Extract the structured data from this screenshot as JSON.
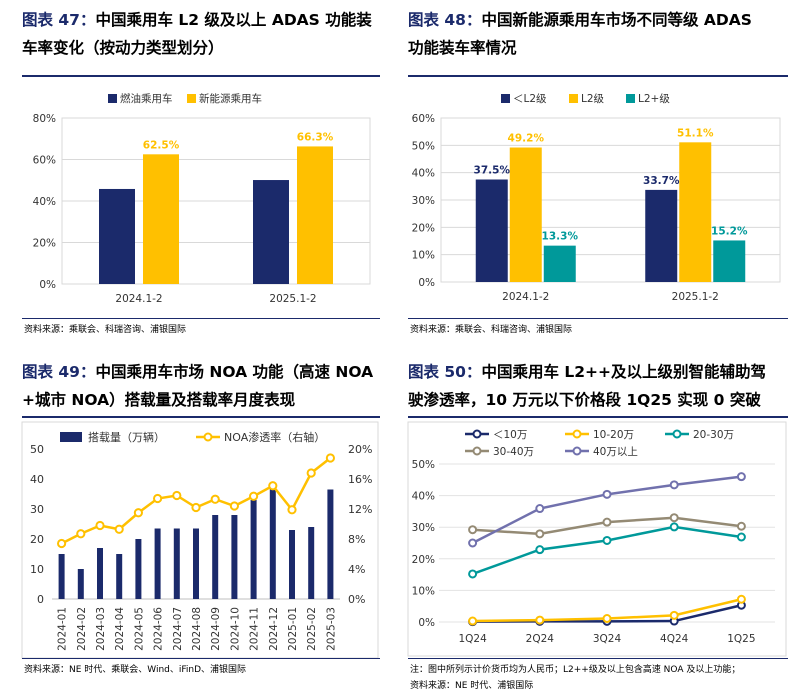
{
  "panels": [
    {
      "title_label": "图表 47：",
      "title_line1": "中国乘用车 L2 级及以上 ADAS 功能装",
      "title_line2": "车率变化（按动力类型划分）",
      "source": "资料来源：乘联会、科瑞咨询、浦银国际"
    },
    {
      "title_label": "图表 48：",
      "title_line1": "中国新能源乘用车市场不同等级 ADAS",
      "title_line2": "功能装车率情况",
      "source": "资料来源：乘联会、科瑞咨询、浦银国际"
    },
    {
      "title_label": "图表 49：",
      "title_line1": "中国乘用车市场 NOA 功能（高速 NOA",
      "title_line2": "+城市 NOA）搭载量及搭载率月度表现",
      "source": "资料来源：NE 时代、乘联会、Wind、iFinD、浦银国际"
    },
    {
      "title_label": "图表 50：",
      "title_line1": "中国乘用车 L2++及以上级别智能辅助驾",
      "title_line2": "驶渗透率，10 万元以下价格段 1Q25 实现 0 突破",
      "note": "注：图中所列示计价货币均为人民币；L2++级及以上包含高速 NOA 及以上功能；",
      "source": "资料来源：NE 时代、浦银国际"
    }
  ],
  "colors": {
    "navy": "#1b2a6b",
    "gold": "#ffc000",
    "teal": "#00999a",
    "gray": "#948a74",
    "purple": "#7171ad"
  },
  "chart_data": [
    {
      "type": "bar",
      "categories": [
        "2024.1-2",
        "2025.1-2"
      ],
      "series": [
        {
          "name": "燃油乘用车",
          "values": [
            45.8,
            50.1
          ],
          "labels": [
            "",
            ""
          ],
          "color": "#1b2a6b"
        },
        {
          "name": "新能源乘用车",
          "values": [
            62.5,
            66.3
          ],
          "labels": [
            "62.5%",
            "66.3%"
          ],
          "color": "#ffc000"
        }
      ],
      "ylim": [
        0,
        80
      ],
      "yticks": [
        "0%",
        "20%",
        "40%",
        "60%",
        "80%"
      ]
    },
    {
      "type": "bar",
      "categories": [
        "2024.1-2",
        "2025.1-2"
      ],
      "series": [
        {
          "name": "＜L2级",
          "values": [
            37.5,
            33.7
          ],
          "labels": [
            "37.5%",
            "33.7%"
          ],
          "color": "#1b2a6b"
        },
        {
          "name": "L2级",
          "values": [
            49.2,
            51.1
          ],
          "labels": [
            "49.2%",
            "51.1%"
          ],
          "color": "#ffc000"
        },
        {
          "name": "L2+级",
          "values": [
            13.3,
            15.2
          ],
          "labels": [
            "13.3%",
            "15.2%"
          ],
          "color": "#00999a"
        }
      ],
      "ylim": [
        0,
        60
      ],
      "yticks": [
        "0%",
        "10%",
        "20%",
        "30%",
        "40%",
        "50%",
        "60%"
      ]
    },
    {
      "type": "bar",
      "categories": [
        "2024-01",
        "2024-02",
        "2024-03",
        "2024-04",
        "2024-05",
        "2024-06",
        "2024-07",
        "2024-08",
        "2024-09",
        "2024-10",
        "2024-11",
        "2024-12",
        "2025-01",
        "2025-02",
        "2025-03"
      ],
      "series": [
        {
          "name": "搭载量（万辆）",
          "type": "bar",
          "axis": "left",
          "values": [
            15,
            10,
            17,
            15,
            20,
            23.5,
            23.5,
            23.5,
            28,
            28,
            33,
            38.5,
            23,
            24,
            36.5
          ],
          "color": "#1b2a6b"
        },
        {
          "name": "NOA渗透率（右轴）",
          "type": "line",
          "axis": "right",
          "values": [
            7.4,
            8.7,
            9.8,
            9.3,
            11.5,
            13.4,
            13.8,
            12.2,
            13.3,
            12.4,
            13.7,
            15.1,
            11.9,
            16.8,
            18.8
          ],
          "color": "#ffc000"
        }
      ],
      "ylim": [
        0,
        50
      ],
      "yticks": [
        "0",
        "10",
        "20",
        "30",
        "40",
        "50"
      ],
      "y2lim": [
        0,
        20
      ],
      "y2ticks": [
        "0%",
        "4%",
        "8%",
        "12%",
        "16%",
        "20%"
      ]
    },
    {
      "type": "line",
      "categories": [
        "1Q24",
        "2Q24",
        "3Q24",
        "4Q24",
        "1Q25"
      ],
      "series": [
        {
          "name": "＜10万",
          "values": [
            0.1,
            0.2,
            0.2,
            0.3,
            5.3
          ],
          "color": "#1b2a6b"
        },
        {
          "name": "10-20万",
          "values": [
            0.3,
            0.6,
            1.1,
            2.1,
            7.2
          ],
          "color": "#ffc000"
        },
        {
          "name": "20-30万",
          "values": [
            15.2,
            22.9,
            25.8,
            30.1,
            26.9
          ],
          "color": "#00999a"
        },
        {
          "name": "30-40万",
          "values": [
            29.2,
            27.9,
            31.6,
            33.0,
            30.3
          ],
          "color": "#948a74"
        },
        {
          "name": "40万以上",
          "values": [
            25.0,
            35.9,
            40.4,
            43.4,
            46.0
          ],
          "color": "#7171ad"
        }
      ],
      "ylim": [
        0,
        50
      ],
      "yticks": [
        "0%",
        "10%",
        "20%",
        "30%",
        "40%",
        "50%"
      ]
    }
  ]
}
